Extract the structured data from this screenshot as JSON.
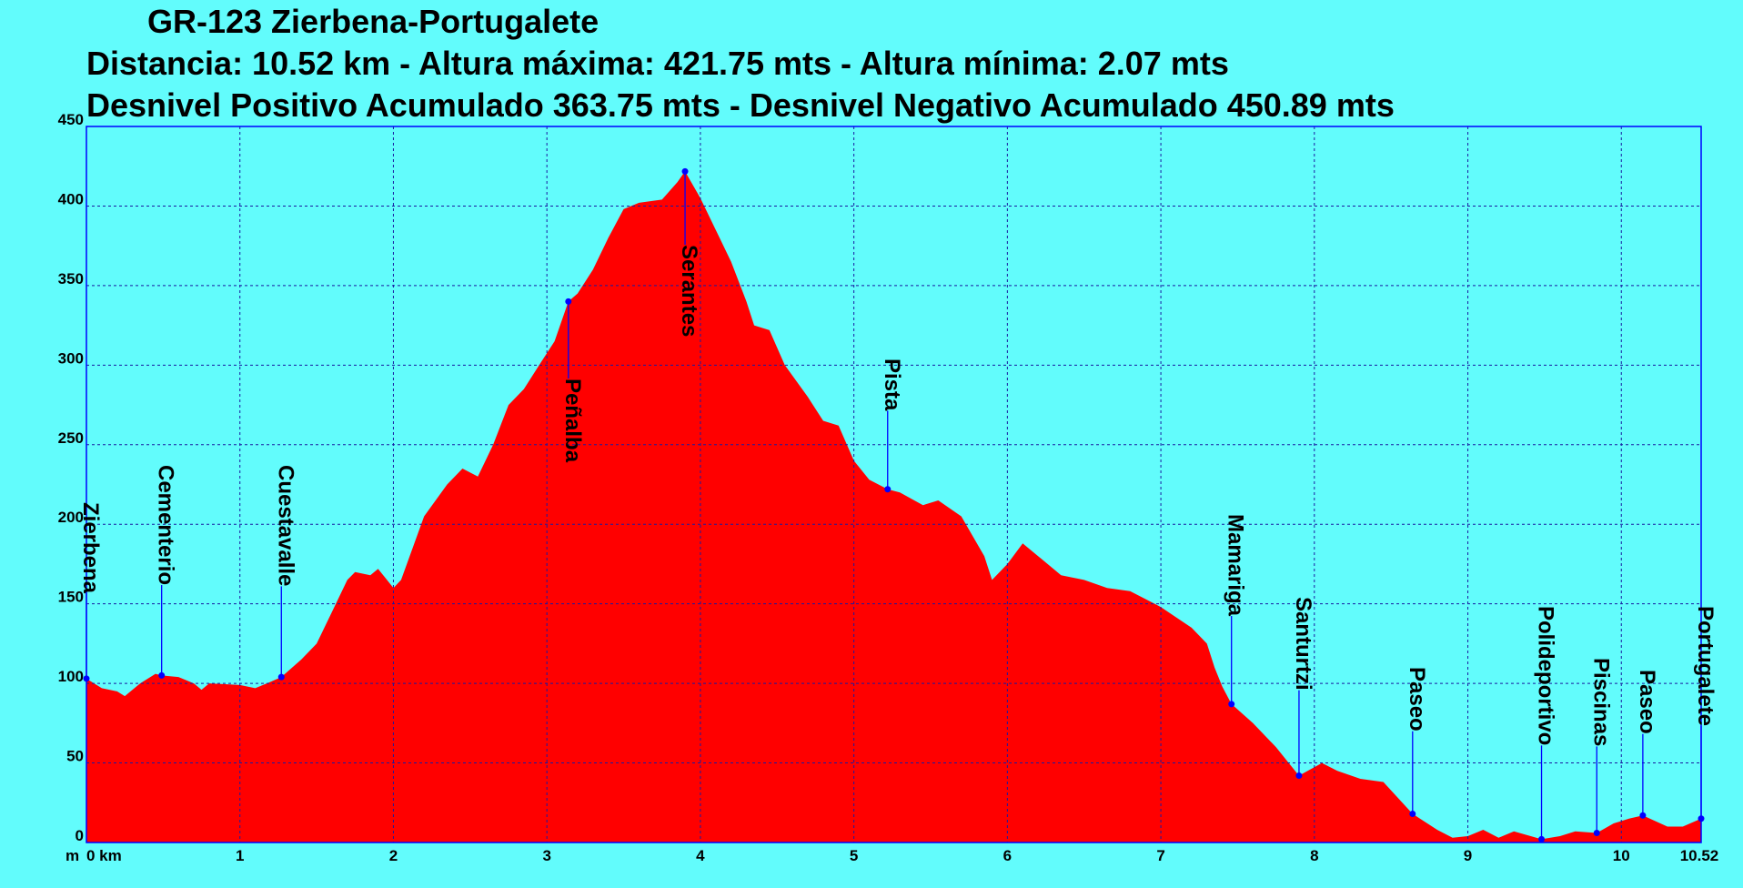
{
  "chart_data": {
    "type": "area",
    "title": "GR-123 Zierbena-Portugalete",
    "subtitle": [
      "Distancia: 10.52 km - Altura máxima: 421.75 mts - Altura mínima: 2.07 mts",
      "Desnivel Positivo Acumulado 363.75 mts - Desnivel Negativo Acumulado 450.89 mts"
    ],
    "y_unit": "m",
    "color": "#ff0000",
    "x": [
      0,
      0.1,
      0.2,
      0.25,
      0.35,
      0.45,
      0.49,
      0.6,
      0.7,
      0.75,
      0.8,
      1.0,
      1.1,
      1.2,
      1.27,
      1.4,
      1.5,
      1.6,
      1.7,
      1.75,
      1.85,
      1.9,
      2.0,
      2.05,
      2.2,
      2.35,
      2.45,
      2.55,
      2.65,
      2.75,
      2.85,
      2.95,
      3.05,
      3.14,
      3.2,
      3.3,
      3.4,
      3.5,
      3.6,
      3.75,
      3.85,
      3.9,
      4.0,
      4.1,
      4.2,
      4.3,
      4.35,
      4.45,
      4.55,
      4.7,
      4.8,
      4.9,
      5.0,
      5.1,
      5.22,
      5.3,
      5.45,
      5.55,
      5.7,
      5.85,
      5.9,
      6.0,
      6.1,
      6.2,
      6.35,
      6.5,
      6.65,
      6.8,
      7.0,
      7.2,
      7.3,
      7.35,
      7.4,
      7.46,
      7.6,
      7.75,
      7.85,
      7.9,
      8.05,
      8.15,
      8.3,
      8.45,
      8.64,
      8.8,
      8.9,
      9.0,
      9.1,
      9.2,
      9.3,
      9.48,
      9.6,
      9.7,
      9.84,
      9.95,
      10.05,
      10.14,
      10.3,
      10.4,
      10.52
    ],
    "values": [
      103,
      97,
      95,
      92,
      100,
      106,
      105,
      104,
      100,
      96,
      100,
      99,
      97,
      101,
      104,
      115,
      125,
      145,
      165,
      170,
      168,
      172,
      160,
      165,
      205,
      225,
      235,
      230,
      250,
      275,
      285,
      300,
      315,
      340,
      345,
      360,
      380,
      398,
      402,
      404,
      415,
      421.75,
      405,
      385,
      365,
      340,
      325,
      322,
      300,
      280,
      265,
      262,
      240,
      228,
      222,
      220,
      212,
      215,
      205,
      180,
      165,
      175,
      188,
      180,
      168,
      165,
      160,
      158,
      148,
      135,
      125,
      110,
      98,
      87,
      75,
      60,
      48,
      42,
      50,
      45,
      40,
      38,
      18,
      8,
      3,
      4,
      8,
      3,
      7,
      2.07,
      4,
      7,
      6,
      12,
      15,
      17,
      10,
      10,
      15
    ],
    "waypoints": [
      {
        "label": "Zierbena",
        "x": 0,
        "y": 103
      },
      {
        "label": "Cementerio",
        "x": 0.49,
        "y": 105
      },
      {
        "label": "Cuestavalle",
        "x": 1.27,
        "y": 104
      },
      {
        "label": "Peñalba",
        "x": 3.14,
        "y": 340
      },
      {
        "label": "Serantes",
        "x": 3.9,
        "y": 421.75
      },
      {
        "label": "Pista",
        "x": 5.22,
        "y": 222
      },
      {
        "label": "Mamariga",
        "x": 7.46,
        "y": 87
      },
      {
        "label": "Santurtzi",
        "x": 7.9,
        "y": 42
      },
      {
        "label": "Paseo",
        "x": 8.64,
        "y": 18
      },
      {
        "label": "Polideportivo",
        "x": 9.48,
        "y": 2.07
      },
      {
        "label": "Piscinas",
        "x": 9.84,
        "y": 6
      },
      {
        "label": "Paseo",
        "x": 10.14,
        "y": 17
      },
      {
        "label": "Portugalete",
        "x": 10.52,
        "y": 15
      }
    ],
    "xlim": [
      0,
      10.52
    ],
    "ylim": [
      0,
      450
    ],
    "xticks": [
      {
        "value": 0,
        "label": "0 km"
      },
      1,
      2,
      3,
      4,
      5,
      6,
      7,
      8,
      9,
      10,
      10.52
    ],
    "yticks": [
      0,
      50,
      100,
      150,
      200,
      250,
      300,
      350,
      400,
      450
    ],
    "grid": true
  }
}
